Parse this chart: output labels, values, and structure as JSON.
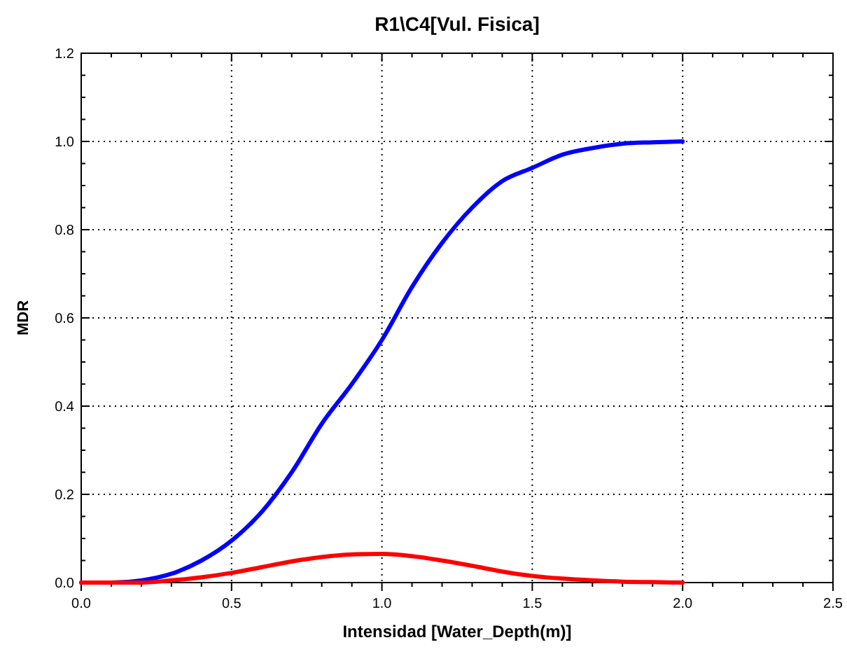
{
  "chart_data": {
    "type": "line",
    "title": "R1\\C4[Vul. Fisica]",
    "xlabel": "Intensidad [Water_Depth(m)]",
    "ylabel": "MDR",
    "x": [
      0,
      0.1,
      0.2,
      0.3,
      0.4,
      0.5,
      0.6,
      0.7,
      0.8,
      0.9,
      1.0,
      1.1,
      1.2,
      1.3,
      1.4,
      1.5,
      1.6,
      1.7,
      1.8,
      1.9,
      2.0
    ],
    "series": [
      {
        "color": "#0000ff",
        "values": [
          0,
          0,
          0.005,
          0.02,
          0.05,
          0.095,
          0.16,
          0.25,
          0.36,
          0.45,
          0.55,
          0.67,
          0.77,
          0.85,
          0.91,
          0.94,
          0.97,
          0.985,
          0.995,
          0.998,
          1.0
        ]
      },
      {
        "color": "#ff0000",
        "values": [
          0,
          0,
          0,
          0.005,
          0.012,
          0.022,
          0.035,
          0.048,
          0.058,
          0.064,
          0.065,
          0.06,
          0.05,
          0.038,
          0.025,
          0.015,
          0.009,
          0.005,
          0.002,
          0.001,
          0
        ]
      }
    ],
    "xlim": [
      0,
      2.5
    ],
    "ylim": [
      0,
      1.2
    ],
    "xticks": [
      {
        "value": 0,
        "label": "0.0"
      },
      {
        "value": 0.1,
        "label": null
      },
      {
        "value": 0.2,
        "label": null
      },
      {
        "value": 0.3,
        "label": null
      },
      {
        "value": 0.4,
        "label": null
      },
      {
        "value": 0.5,
        "label": "0.5"
      },
      {
        "value": 0.6,
        "label": null
      },
      {
        "value": 0.7,
        "label": null
      },
      {
        "value": 0.8,
        "label": null
      },
      {
        "value": 0.9,
        "label": null
      },
      {
        "value": 1,
        "label": "1.0"
      },
      {
        "value": 1.1,
        "label": null
      },
      {
        "value": 1.2,
        "label": null
      },
      {
        "value": 1.3,
        "label": null
      },
      {
        "value": 1.4,
        "label": null
      },
      {
        "value": 1.5,
        "label": "1.5"
      },
      {
        "value": 1.6,
        "label": null
      },
      {
        "value": 1.7,
        "label": null
      },
      {
        "value": 1.8,
        "label": null
      },
      {
        "value": 1.9,
        "label": null
      },
      {
        "value": 2,
        "label": "2.0"
      },
      {
        "value": 2.1,
        "label": null
      },
      {
        "value": 2.2,
        "label": null
      },
      {
        "value": 2.3,
        "label": null
      },
      {
        "value": 2.4,
        "label": null
      },
      {
        "value": 2.5,
        "label": "2.5"
      }
    ],
    "yticks": [
      {
        "value": 0,
        "label": "0.0"
      },
      {
        "value": 0.05,
        "label": null
      },
      {
        "value": 0.1,
        "label": null
      },
      {
        "value": 0.15,
        "label": null
      },
      {
        "value": 0.2,
        "label": "0.2"
      },
      {
        "value": 0.25,
        "label": null
      },
      {
        "value": 0.3,
        "label": null
      },
      {
        "value": 0.35,
        "label": null
      },
      {
        "value": 0.4,
        "label": "0.4"
      },
      {
        "value": 0.45,
        "label": null
      },
      {
        "value": 0.5,
        "label": null
      },
      {
        "value": 0.55,
        "label": null
      },
      {
        "value": 0.6,
        "label": "0.6"
      },
      {
        "value": 0.65,
        "label": null
      },
      {
        "value": 0.7,
        "label": null
      },
      {
        "value": 0.75,
        "label": null
      },
      {
        "value": 0.8,
        "label": "0.8"
      },
      {
        "value": 0.85,
        "label": null
      },
      {
        "value": 0.9,
        "label": null
      },
      {
        "value": 0.95,
        "label": null
      },
      {
        "value": 1,
        "label": "1.0"
      },
      {
        "value": 1.05,
        "label": null
      },
      {
        "value": 1.1,
        "label": null
      },
      {
        "value": 1.15,
        "label": null
      },
      {
        "value": 1.2,
        "label": "1.2"
      }
    ],
    "grid": true,
    "marker": "none",
    "line_style": "solid"
  }
}
